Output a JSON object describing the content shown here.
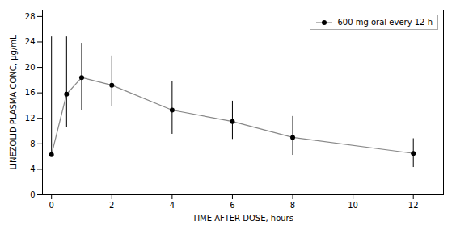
{
  "chart_data": {
    "type": "line",
    "xlabel": "TIME AFTER DOSE, hours",
    "ylabel": "LINEZOLID PLASMA CONC, µg/mL",
    "x": [
      0,
      0.5,
      1,
      2,
      4,
      6,
      8,
      12
    ],
    "series": [
      {
        "name": "600 mg oral every 12 h",
        "color": "#888888",
        "marker": "o",
        "line_style": "solid",
        "values": [
          6.3,
          15.8,
          18.4,
          17.2,
          13.3,
          11.5,
          9.0,
          6.5
        ],
        "error_upper": [
          18.5,
          9.0,
          5.4,
          4.6,
          4.5,
          3.2,
          3.3,
          2.3
        ],
        "error_lower": [
          0.0,
          5.2,
          5.2,
          3.3,
          3.8,
          2.8,
          2.8,
          2.2
        ]
      }
    ],
    "xlim": [
      -0.3,
      13
    ],
    "ylim": [
      0,
      29
    ],
    "xticks": [
      0,
      2,
      4,
      6,
      8,
      10,
      12
    ],
    "yticks": [
      0,
      4,
      8,
      12,
      16,
      20,
      24,
      28
    ],
    "grid": false,
    "legend": "upper right"
  }
}
